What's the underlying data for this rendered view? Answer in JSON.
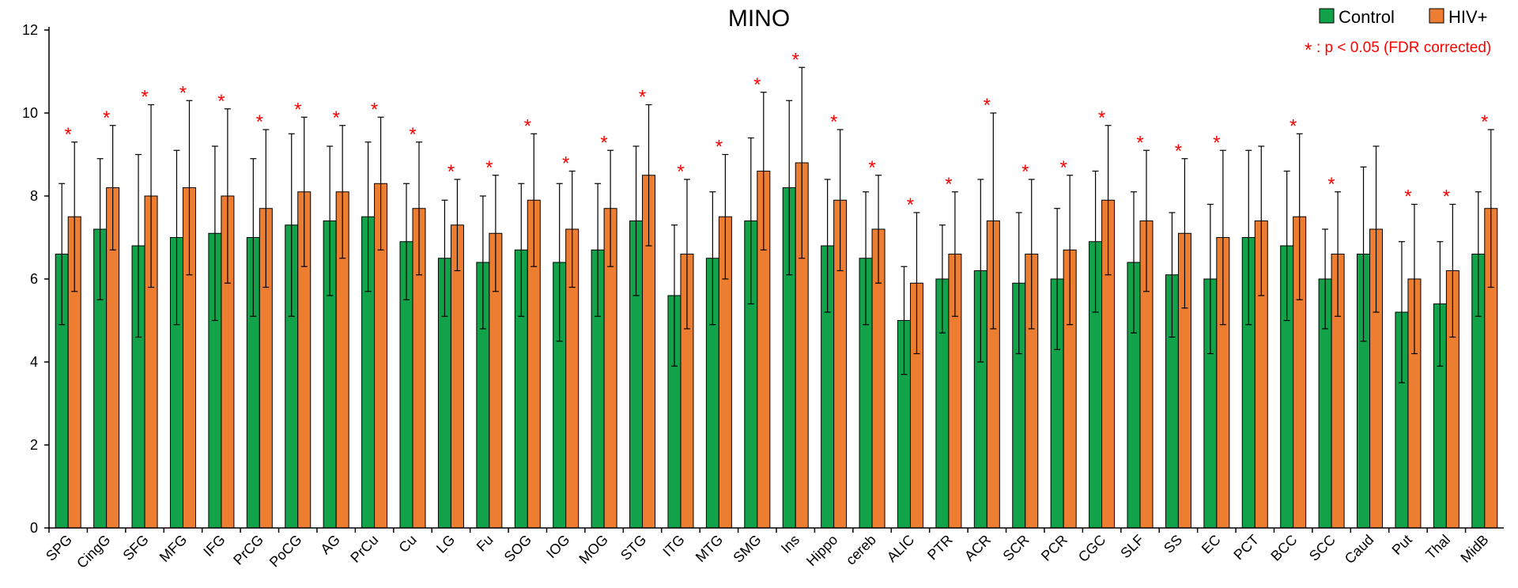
{
  "chart_data": {
    "type": "bar",
    "title": "MINO",
    "xlabel": "",
    "ylabel": "",
    "ylim": [
      0,
      12
    ],
    "yticks": [
      "0",
      "2",
      "4",
      "6",
      "8",
      "10",
      "12"
    ],
    "grid": false,
    "legend_position": "top-right",
    "significance_note": {
      "marker": "*",
      "text": ": p < 0.05 (FDR corrected)"
    },
    "categories": [
      "SPG",
      "CingG",
      "SFG",
      "MFG",
      "IFG",
      "PrCG",
      "PoCG",
      "AG",
      "PrCu",
      "Cu",
      "LG",
      "Fu",
      "SOG",
      "IOG",
      "MOG",
      "STG",
      "ITG",
      "MTG",
      "SMG",
      "Ins",
      "Hippo",
      "cereb",
      "ALIC",
      "PTR",
      "ACR",
      "SCR",
      "PCR",
      "CGC",
      "SLF",
      "SS",
      "EC",
      "PCT",
      "BCC",
      "SCC",
      "Caud",
      "Put",
      "Thal",
      "MidB"
    ],
    "significant": [
      true,
      true,
      true,
      true,
      true,
      true,
      true,
      true,
      true,
      true,
      true,
      true,
      true,
      true,
      true,
      true,
      true,
      true,
      true,
      true,
      true,
      true,
      true,
      true,
      true,
      true,
      true,
      true,
      true,
      true,
      true,
      false,
      true,
      true,
      false,
      true,
      true,
      true
    ],
    "series": [
      {
        "name": "Control",
        "color": "#12a24a",
        "values": [
          6.6,
          7.2,
          6.8,
          7.0,
          7.1,
          7.0,
          7.3,
          7.4,
          7.5,
          6.9,
          6.5,
          6.4,
          6.7,
          6.4,
          6.7,
          7.4,
          5.6,
          6.5,
          7.4,
          8.2,
          6.8,
          6.5,
          5.0,
          6.0,
          6.2,
          5.9,
          6.0,
          6.9,
          6.4,
          6.1,
          6.0,
          7.0,
          6.8,
          6.0,
          6.6,
          5.2,
          5.4,
          6.6
        ],
        "errors": [
          1.7,
          1.7,
          2.2,
          2.1,
          2.1,
          1.9,
          2.2,
          1.8,
          1.8,
          1.4,
          1.4,
          1.6,
          1.6,
          1.9,
          1.6,
          1.8,
          1.7,
          1.6,
          2.0,
          2.1,
          1.6,
          1.6,
          1.3,
          1.3,
          2.2,
          1.7,
          1.7,
          1.7,
          1.7,
          1.5,
          1.8,
          2.1,
          1.8,
          1.2,
          2.1,
          1.7,
          1.5,
          1.5
        ]
      },
      {
        "name": "HIV+",
        "color": "#ed7d31",
        "values": [
          7.5,
          8.2,
          8.0,
          8.2,
          8.0,
          7.7,
          8.1,
          8.1,
          8.3,
          7.7,
          7.3,
          7.1,
          7.9,
          7.2,
          7.7,
          8.5,
          6.6,
          7.5,
          8.6,
          8.8,
          7.9,
          7.2,
          5.9,
          6.6,
          7.4,
          6.6,
          6.7,
          7.9,
          7.4,
          7.1,
          7.0,
          7.4,
          7.5,
          6.6,
          7.2,
          6.0,
          6.2,
          7.7
        ],
        "errors": [
          1.8,
          1.5,
          2.2,
          2.1,
          2.1,
          1.9,
          1.8,
          1.6,
          1.6,
          1.6,
          1.1,
          1.4,
          1.6,
          1.4,
          1.4,
          1.7,
          1.8,
          1.5,
          1.9,
          2.3,
          1.7,
          1.3,
          1.7,
          1.5,
          2.6,
          1.8,
          1.8,
          1.8,
          1.7,
          1.8,
          2.1,
          1.8,
          2.0,
          1.5,
          2.0,
          1.8,
          1.6,
          1.9
        ]
      }
    ]
  }
}
